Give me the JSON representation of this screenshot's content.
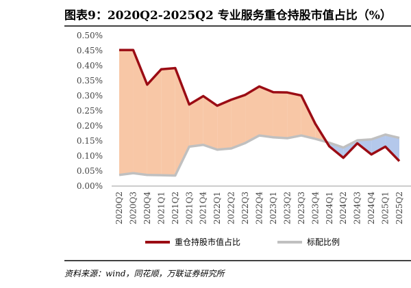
{
  "figure": {
    "title": "图表9：2020Q2-2025Q2 专业服务重仓持股市值占比（%）",
    "source": "资料来源：wind，同花顺，万联证券研究所"
  },
  "colors": {
    "heavy_line": "#9b0c14",
    "base_line": "#c0c0c0",
    "fill_above": "#f8c7a6",
    "fill_below": "#b4c8eb"
  },
  "chart_data": {
    "type": "line",
    "title": "2020Q2-2025Q2 专业服务重仓持股市值占比（%）",
    "xlabel": "",
    "ylabel": "",
    "ylim": [
      0,
      0.5
    ],
    "grid": false,
    "legend_position": "bottom",
    "categories": [
      "2020Q2",
      "2020Q3",
      "2020Q4",
      "2021Q1",
      "2021Q2",
      "2021Q3",
      "2021Q4",
      "2022Q1",
      "2022Q2",
      "2022Q3",
      "2022Q4",
      "2023Q1",
      "2023Q2",
      "2023Q3",
      "2023Q4",
      "2024Q1",
      "2024Q2",
      "2024Q3",
      "2024Q4",
      "2025Q1",
      "2025Q2"
    ],
    "y_ticks": [
      "0.00%",
      "0.05%",
      "0.10%",
      "0.15%",
      "0.20%",
      "0.25%",
      "0.30%",
      "0.35%",
      "0.40%",
      "0.45%",
      "0.50%"
    ],
    "series": [
      {
        "name": "重仓持股市值占比",
        "values": [
          0.452,
          0.452,
          0.337,
          0.388,
          0.392,
          0.271,
          0.299,
          0.267,
          0.287,
          0.303,
          0.331,
          0.312,
          0.311,
          0.301,
          0.207,
          0.132,
          0.094,
          0.142,
          0.105,
          0.131,
          0.083
        ]
      },
      {
        "name": "标配比例",
        "values": [
          0.037,
          0.043,
          0.037,
          0.036,
          0.035,
          0.131,
          0.137,
          0.121,
          0.125,
          0.143,
          0.168,
          0.162,
          0.159,
          0.168,
          0.157,
          0.144,
          0.128,
          0.152,
          0.155,
          0.171,
          0.16
        ]
      }
    ]
  }
}
